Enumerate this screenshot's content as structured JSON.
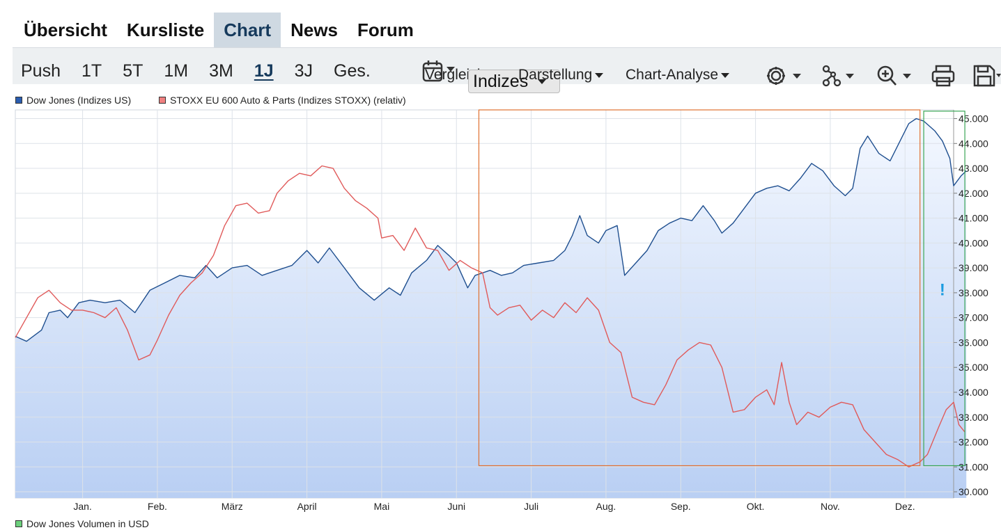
{
  "tabs": [
    {
      "label": "Übersicht",
      "active": false
    },
    {
      "label": "Kursliste",
      "active": false
    },
    {
      "label": "Chart",
      "active": true
    },
    {
      "label": "News",
      "active": false
    },
    {
      "label": "Forum",
      "active": false
    }
  ],
  "ranges": [
    "Push",
    "1T",
    "5T",
    "1M",
    "3M",
    "1J",
    "3J",
    "Ges."
  ],
  "active_range": "1J",
  "tools": {
    "vergleich": "Vergleich",
    "darstellung": "Darstellung",
    "chart_analyse": "Chart-Analyse",
    "indizes": "Indizes"
  },
  "colors": {
    "dow": "#1f4f8f",
    "stoxx": "#e05a5a",
    "volume": "#3aa655",
    "highlight_orange": "#e07030",
    "highlight_green": "#3aa655",
    "alert": "#1a9be0",
    "area_top": "#f4f8ff",
    "area_bottom": "#b9cff3"
  },
  "volume_label": "Dow Jones Volumen in USD",
  "alert_mark": "!",
  "chart_data": {
    "type": "line",
    "legend": [
      "Dow Jones (Indizes US)",
      "STOXX EU 600 Auto & Parts (Indizes STOXX) (relativ)"
    ],
    "legend_placement": "top-left",
    "x_ticks": [
      {
        "label": "Jan.",
        "t": 1.0
      },
      {
        "label": "Feb.",
        "t": 2.0
      },
      {
        "label": "März",
        "t": 3.0
      },
      {
        "label": "April",
        "t": 4.0
      },
      {
        "label": "Mai",
        "t": 5.0
      },
      {
        "label": "Juni",
        "t": 6.0
      },
      {
        "label": "Juli",
        "t": 7.0
      },
      {
        "label": "Aug.",
        "t": 8.0
      },
      {
        "label": "Sep.",
        "t": 9.0
      },
      {
        "label": "Okt.",
        "t": 10.0
      },
      {
        "label": "Nov.",
        "t": 11.0
      },
      {
        "label": "Dez.",
        "t": 12.0
      }
    ],
    "xlim": [
      0.1,
      12.65
    ],
    "y_ticks": [
      "45.000",
      "44.000",
      "43.000",
      "42.000",
      "41.000",
      "40.000",
      "39.000",
      "38.000",
      "37.000",
      "36.000",
      "35.000",
      "34.000",
      "33.000",
      "32.000",
      "31.000",
      "30.000"
    ],
    "y_tick_values": [
      45000,
      44000,
      43000,
      42000,
      41000,
      40000,
      39000,
      38000,
      37000,
      36000,
      35000,
      34000,
      33000,
      32000,
      31000,
      30000
    ],
    "ylim": [
      29750,
      45350
    ],
    "grid": true,
    "series": [
      {
        "name": "Dow Jones (Indizes US)",
        "points": [
          [
            0.1,
            36250
          ],
          [
            0.25,
            36050
          ],
          [
            0.45,
            36500
          ],
          [
            0.55,
            37200
          ],
          [
            0.7,
            37300
          ],
          [
            0.8,
            37000
          ],
          [
            0.95,
            37600
          ],
          [
            1.1,
            37700
          ],
          [
            1.3,
            37600
          ],
          [
            1.5,
            37700
          ],
          [
            1.7,
            37200
          ],
          [
            1.9,
            38100
          ],
          [
            2.1,
            38400
          ],
          [
            2.3,
            38700
          ],
          [
            2.5,
            38600
          ],
          [
            2.65,
            39100
          ],
          [
            2.8,
            38600
          ],
          [
            3.0,
            39000
          ],
          [
            3.2,
            39100
          ],
          [
            3.4,
            38700
          ],
          [
            3.6,
            38900
          ],
          [
            3.8,
            39100
          ],
          [
            4.0,
            39700
          ],
          [
            4.15,
            39200
          ],
          [
            4.3,
            39800
          ],
          [
            4.5,
            39000
          ],
          [
            4.7,
            38200
          ],
          [
            4.9,
            37700
          ],
          [
            5.1,
            38200
          ],
          [
            5.25,
            37900
          ],
          [
            5.4,
            38800
          ],
          [
            5.6,
            39300
          ],
          [
            5.75,
            39900
          ],
          [
            5.9,
            39500
          ],
          [
            6.0,
            39200
          ],
          [
            6.15,
            38200
          ],
          [
            6.25,
            38700
          ],
          [
            6.45,
            38900
          ],
          [
            6.6,
            38700
          ],
          [
            6.75,
            38800
          ],
          [
            6.9,
            39100
          ],
          [
            7.1,
            39200
          ],
          [
            7.3,
            39300
          ],
          [
            7.45,
            39700
          ],
          [
            7.55,
            40300
          ],
          [
            7.65,
            41100
          ],
          [
            7.75,
            40300
          ],
          [
            7.9,
            40000
          ],
          [
            8.0,
            40500
          ],
          [
            8.15,
            40700
          ],
          [
            8.25,
            38700
          ],
          [
            8.4,
            39200
          ],
          [
            8.55,
            39700
          ],
          [
            8.7,
            40500
          ],
          [
            8.85,
            40800
          ],
          [
            9.0,
            41000
          ],
          [
            9.15,
            40900
          ],
          [
            9.3,
            41500
          ],
          [
            9.45,
            40900
          ],
          [
            9.55,
            40400
          ],
          [
            9.7,
            40800
          ],
          [
            9.85,
            41400
          ],
          [
            10.0,
            42000
          ],
          [
            10.15,
            42200
          ],
          [
            10.3,
            42300
          ],
          [
            10.45,
            42100
          ],
          [
            10.6,
            42600
          ],
          [
            10.75,
            43200
          ],
          [
            10.9,
            42900
          ],
          [
            11.05,
            42300
          ],
          [
            11.2,
            41900
          ],
          [
            11.3,
            42200
          ],
          [
            11.4,
            43800
          ],
          [
            11.5,
            44300
          ],
          [
            11.65,
            43600
          ],
          [
            11.8,
            43300
          ],
          [
            11.95,
            44200
          ],
          [
            12.05,
            44800
          ],
          [
            12.15,
            45000
          ],
          [
            12.25,
            44900
          ],
          [
            12.4,
            44500
          ],
          [
            12.5,
            44100
          ],
          [
            12.6,
            43400
          ],
          [
            12.65,
            42300
          ],
          [
            12.75,
            42700
          ],
          [
            12.82,
            42900
          ]
        ]
      },
      {
        "name": "STOXX EU 600 Auto & Parts (Indizes STOXX) (relativ)",
        "points": [
          [
            0.1,
            36200
          ],
          [
            0.25,
            37000
          ],
          [
            0.4,
            37800
          ],
          [
            0.55,
            38100
          ],
          [
            0.7,
            37600
          ],
          [
            0.85,
            37300
          ],
          [
            1.0,
            37300
          ],
          [
            1.15,
            37200
          ],
          [
            1.3,
            37000
          ],
          [
            1.45,
            37400
          ],
          [
            1.6,
            36500
          ],
          [
            1.75,
            35300
          ],
          [
            1.9,
            35500
          ],
          [
            2.0,
            36100
          ],
          [
            2.15,
            37100
          ],
          [
            2.3,
            37900
          ],
          [
            2.45,
            38400
          ],
          [
            2.6,
            38800
          ],
          [
            2.75,
            39500
          ],
          [
            2.9,
            40700
          ],
          [
            3.05,
            41500
          ],
          [
            3.2,
            41600
          ],
          [
            3.35,
            41200
          ],
          [
            3.5,
            41300
          ],
          [
            3.6,
            42000
          ],
          [
            3.75,
            42500
          ],
          [
            3.9,
            42800
          ],
          [
            4.05,
            42700
          ],
          [
            4.2,
            43100
          ],
          [
            4.35,
            43000
          ],
          [
            4.5,
            42200
          ],
          [
            4.65,
            41700
          ],
          [
            4.8,
            41400
          ],
          [
            4.95,
            41000
          ],
          [
            5.0,
            40200
          ],
          [
            5.15,
            40300
          ],
          [
            5.3,
            39700
          ],
          [
            5.45,
            40600
          ],
          [
            5.6,
            39800
          ],
          [
            5.75,
            39700
          ],
          [
            5.9,
            38900
          ],
          [
            6.05,
            39300
          ],
          [
            6.2,
            39000
          ],
          [
            6.35,
            38800
          ],
          [
            6.45,
            37400
          ],
          [
            6.55,
            37100
          ],
          [
            6.7,
            37400
          ],
          [
            6.85,
            37500
          ],
          [
            7.0,
            36900
          ],
          [
            7.15,
            37300
          ],
          [
            7.3,
            37000
          ],
          [
            7.45,
            37600
          ],
          [
            7.6,
            37200
          ],
          [
            7.75,
            37800
          ],
          [
            7.9,
            37300
          ],
          [
            8.05,
            36000
          ],
          [
            8.2,
            35600
          ],
          [
            8.35,
            33800
          ],
          [
            8.5,
            33600
          ],
          [
            8.65,
            33500
          ],
          [
            8.8,
            34300
          ],
          [
            8.95,
            35300
          ],
          [
            9.1,
            35700
          ],
          [
            9.25,
            36000
          ],
          [
            9.4,
            35900
          ],
          [
            9.55,
            35000
          ],
          [
            9.7,
            33200
          ],
          [
            9.85,
            33300
          ],
          [
            10.0,
            33800
          ],
          [
            10.15,
            34100
          ],
          [
            10.25,
            33500
          ],
          [
            10.35,
            35200
          ],
          [
            10.45,
            33600
          ],
          [
            10.55,
            32700
          ],
          [
            10.7,
            33200
          ],
          [
            10.85,
            33000
          ],
          [
            11.0,
            33400
          ],
          [
            11.15,
            33600
          ],
          [
            11.3,
            33500
          ],
          [
            11.45,
            32500
          ],
          [
            11.6,
            32000
          ],
          [
            11.75,
            31500
          ],
          [
            11.9,
            31300
          ],
          [
            12.05,
            31000
          ],
          [
            12.2,
            31200
          ],
          [
            12.3,
            31500
          ],
          [
            12.45,
            32600
          ],
          [
            12.55,
            33300
          ],
          [
            12.65,
            33600
          ],
          [
            12.72,
            32700
          ],
          [
            12.8,
            32400
          ]
        ]
      }
    ],
    "annotations": [
      {
        "type": "rect",
        "color": "orange",
        "x": [
          6.3,
          12.2
        ],
        "y": [
          31050,
          45350
        ]
      },
      {
        "type": "rect",
        "color": "green",
        "x": [
          12.25,
          12.8
        ],
        "y": [
          31050,
          45300
        ]
      }
    ]
  }
}
